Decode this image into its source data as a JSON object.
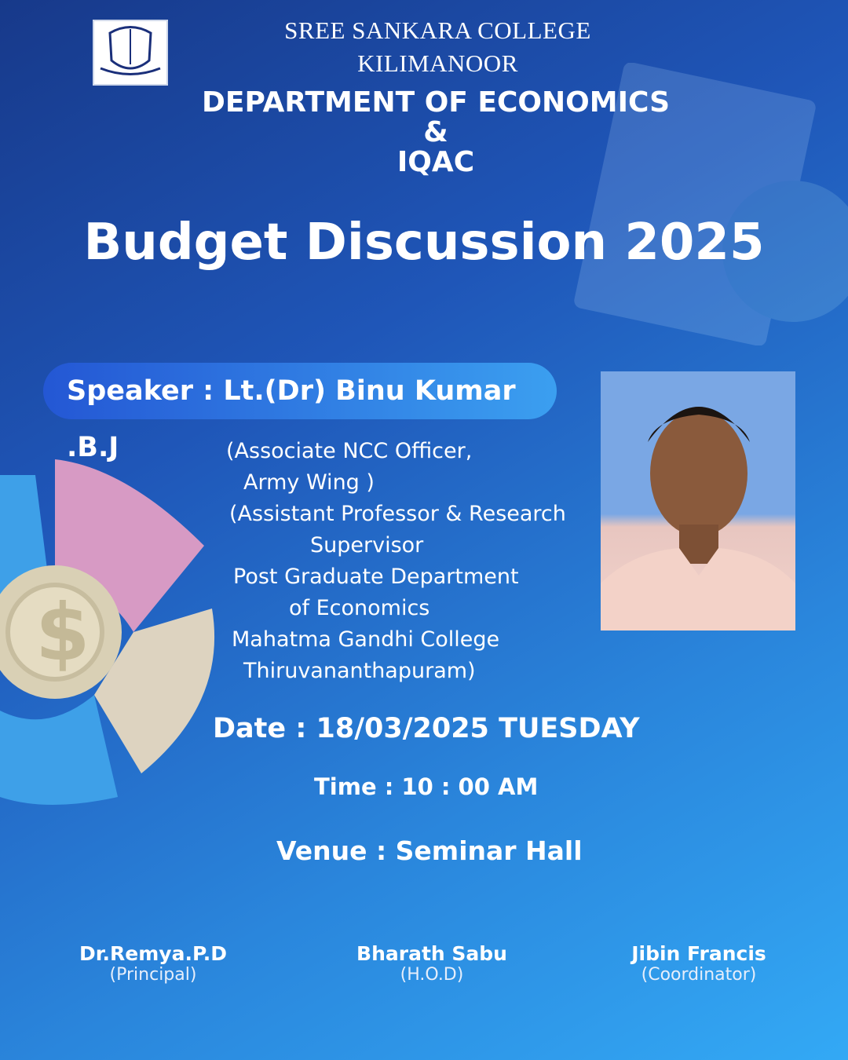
{
  "logo": {
    "text": "SREE SANKARA COLLEGE"
  },
  "header": {
    "college": "SREE SANKARA COLLEGE",
    "place": "KILIMANOOR",
    "dept": "DEPARTMENT OF ECONOMICS",
    "amp": "&",
    "iqac": "IQAC"
  },
  "title": "Budget Discussion 2025",
  "speaker": {
    "label": "Speaker : Lt.(Dr) Binu Kumar .B.J",
    "lines": [
      "(Associate NCC Officer,",
      "Army Wing )",
      "(Assistant Professor & Research",
      "Supervisor",
      "Post Graduate Department",
      "of Economics",
      "Mahatma Gandhi College",
      "Thiruvananthapuram)"
    ]
  },
  "event": {
    "date": "Date : 18/03/2025 TUESDAY",
    "time": "Time : 10 : 00 AM",
    "venue": "Venue : Seminar Hall"
  },
  "signatories": [
    {
      "name": "Dr.Remya.P.D",
      "role": "(Principal)"
    },
    {
      "name": "Bharath Sabu",
      "role": "(H.O.D)"
    },
    {
      "name": "Jibin Francis",
      "role": "(Coordinator)"
    }
  ]
}
